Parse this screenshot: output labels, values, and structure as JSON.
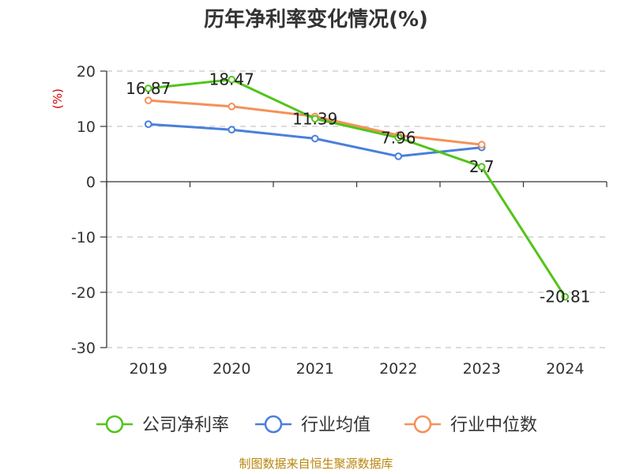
{
  "chart_data": {
    "type": "line",
    "title": "历年净利率变化情况(%)",
    "ylabel": "(%)",
    "xlabel": "",
    "categories": [
      "2019",
      "2020",
      "2021",
      "2022",
      "2023",
      "2024"
    ],
    "ylim": [
      -30,
      20
    ],
    "yticks": [
      20,
      10,
      0,
      -10,
      -20,
      -30
    ],
    "grid": true,
    "legend_position": "bottom",
    "series": [
      {
        "name": "公司净利率",
        "color": "#52c41a",
        "values": [
          16.87,
          18.47,
          11.39,
          7.96,
          2.7,
          -20.81
        ],
        "labels": [
          "16.87",
          "18.47",
          "11.39",
          "7.96",
          "2.7",
          "-20.81"
        ]
      },
      {
        "name": "行业均值",
        "color": "#4a7fdb",
        "values": [
          10.4,
          9.4,
          7.8,
          4.6,
          6.2,
          null
        ]
      },
      {
        "name": "行业中位数",
        "color": "#f4915a",
        "values": [
          14.7,
          13.6,
          11.8,
          8.4,
          6.7,
          null
        ]
      }
    ]
  },
  "source": "制图数据来自恒生聚源数据库"
}
